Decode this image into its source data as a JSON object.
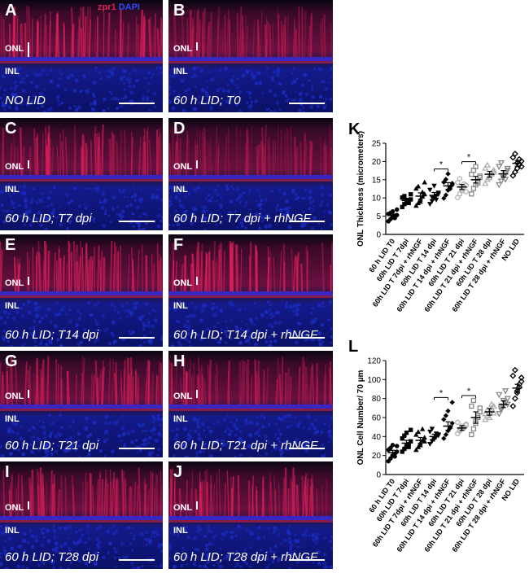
{
  "stains": {
    "red": "zpr1",
    "blue": "DAPI"
  },
  "layers": {
    "onl": "ONL",
    "inl": "INL"
  },
  "panels": [
    {
      "letter": "A",
      "caption": "NO LID",
      "red_intensity": 0.85
    },
    {
      "letter": "B",
      "caption": "60 h LID; T0",
      "red_intensity": 0.55
    },
    {
      "letter": "C",
      "caption": "60 h LID; T7 dpi",
      "red_intensity": 0.7
    },
    {
      "letter": "D",
      "caption": "60 h LID; T7 dpi + rhNGF",
      "red_intensity": 0.45
    },
    {
      "letter": "E",
      "caption": "60 h LID; T14 dpi",
      "red_intensity": 0.9
    },
    {
      "letter": "F",
      "caption": "60 h LID; T14 dpi + rhNGF",
      "red_intensity": 0.85
    },
    {
      "letter": "G",
      "caption": "60 h LID; T21 dpi",
      "red_intensity": 0.75
    },
    {
      "letter": "H",
      "caption": "60 h LID; T21 dpi + rhNGF",
      "red_intensity": 0.6
    },
    {
      "letter": "I",
      "caption": "60 h LID; T28 dpi",
      "red_intensity": 0.7
    },
    {
      "letter": "J",
      "caption": "60 h LID; T28 dpi + rhNGF",
      "red_intensity": 0.8
    }
  ],
  "colors": {
    "nuclei": "#1a2bbf",
    "photoreceptor": "#e0205a",
    "background": "#060614"
  },
  "chart_data": [
    {
      "letter": "K",
      "type": "scatter",
      "ylabel": "ONL Thickness (micrometers)",
      "ylim": [
        0,
        25
      ],
      "yticks": [
        "0",
        "5",
        "10",
        "15",
        "20",
        "25"
      ],
      "categories": [
        "60 h LID T0",
        "60h LID T 7dpi",
        "60h LID T 7dpi + rhNGF",
        "60h LID T 14 dpi",
        "60h LID T 14 dpi + rhNGF",
        "60h LID T 21 dpi",
        "60h LID T 21 dpi + rhNGF",
        "60h LID T 28 dpi",
        "60h LID T 28 dpi + rhNGF",
        "NO LID"
      ],
      "means": [
        5.2,
        9.3,
        10.5,
        10.7,
        13.3,
        13.0,
        15.0,
        16.5,
        16.6,
        19.5
      ],
      "sems": [
        0.4,
        0.6,
        0.9,
        0.8,
        0.9,
        0.7,
        0.9,
        0.8,
        0.9,
        0.8
      ],
      "points": [
        [
          3.6,
          4.2,
          4.7,
          5.0,
          5.3,
          5.6,
          5.9,
          6.3,
          4.5,
          6.8
        ],
        [
          7.5,
          8.3,
          8.8,
          9.2,
          9.6,
          10.1,
          10.5,
          9.4,
          8.6,
          11.0
        ],
        [
          7.9,
          8.6,
          9.6,
          10.4,
          11.1,
          12.6,
          13.2,
          9.0,
          11.6,
          14.3
        ],
        [
          8.3,
          9.1,
          9.9,
          10.6,
          11.4,
          12.2,
          10.2,
          13.3,
          9.5,
          11.0
        ],
        [
          9.9,
          10.8,
          12.1,
          13.0,
          13.6,
          14.3,
          15.1,
          16.6,
          12.5,
          14.0
        ],
        [
          10.1,
          11.1,
          12.0,
          12.9,
          13.5,
          14.2,
          15.3,
          12.4,
          13.8,
          11.7
        ],
        [
          11.1,
          12.6,
          13.6,
          14.6,
          15.6,
          16.5,
          17.6,
          18.6,
          14.1,
          16.0
        ],
        [
          14.0,
          15.1,
          16.1,
          16.6,
          17.1,
          18.2,
          19.0,
          15.6,
          16.9,
          17.6
        ],
        [
          13.6,
          14.6,
          15.6,
          16.6,
          17.6,
          18.6,
          19.6,
          16.1,
          15.1,
          18.1
        ],
        [
          16.1,
          17.1,
          18.1,
          19.1,
          20.1,
          21.1,
          22.1,
          19.6,
          20.6,
          18.6
        ]
      ],
      "significance": [
        [
          3,
          4
        ],
        [
          5,
          6
        ]
      ],
      "sig_label": "*"
    },
    {
      "letter": "L",
      "type": "scatter",
      "ylabel": "ONL Cell Number/ 70 µm",
      "ylim": [
        0,
        120
      ],
      "yticks": [
        "0",
        "20",
        "40",
        "60",
        "80",
        "100",
        "120"
      ],
      "categories": [
        "60 h LID T0",
        "60h LID T 7dpi",
        "60h LID T 7dpi + rhNGF",
        "60h LID T 14 dpi",
        "60h LID T 14 dpi + rhNGF",
        "60h LID T 21 dpi",
        "60h LID T 21 dpi + rhNGF",
        "60h LID T 28 dpi",
        "60h LID T 28 dpi + rhNGF",
        "NO LID"
      ],
      "means": [
        23,
        33,
        36,
        40,
        51,
        49,
        60,
        66,
        74,
        91
      ],
      "sems": [
        2.5,
        3.0,
        3.0,
        2.5,
        4.5,
        2.5,
        6.0,
        3.5,
        3.5,
        4.0
      ],
      "points": [
        [
          14,
          17,
          20,
          22,
          24,
          26,
          28,
          31,
          19,
          30
        ],
        [
          24,
          27,
          30,
          32,
          35,
          38,
          41,
          44,
          29,
          47
        ],
        [
          26,
          29,
          33,
          36,
          39,
          42,
          45,
          31,
          48,
          35
        ],
        [
          32,
          35,
          38,
          40,
          42,
          45,
          48,
          37,
          43,
          41
        ],
        [
          38,
          42,
          46,
          50,
          54,
          58,
          62,
          67,
          49,
          76
        ],
        [
          43,
          46,
          48,
          50,
          52,
          55,
          47,
          51,
          49,
          53
        ],
        [
          42,
          48,
          54,
          60,
          66,
          72,
          78,
          56,
          62,
          70
        ],
        [
          58,
          62,
          66,
          70,
          72,
          64,
          68,
          60,
          74,
          65
        ],
        [
          64,
          68,
          72,
          76,
          80,
          84,
          70,
          78,
          88,
          74
        ],
        [
          72,
          80,
          86,
          92,
          98,
          104,
          110,
          88,
          95,
          102
        ]
      ],
      "significance": [
        [
          3,
          4
        ],
        [
          5,
          6
        ]
      ],
      "sig_label": "*"
    }
  ]
}
